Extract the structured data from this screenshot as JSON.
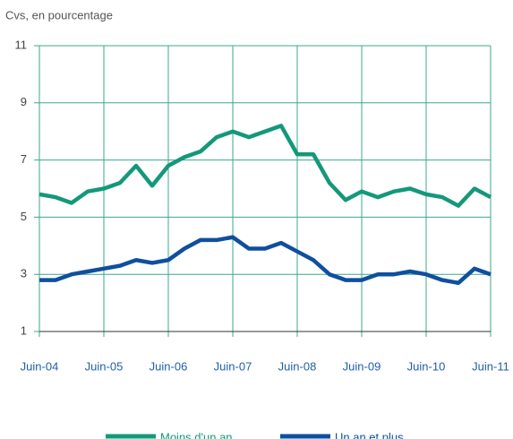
{
  "chart_data": {
    "type": "line",
    "ylabel": "Cvs, en pourcentage",
    "categories": [
      "Juin-04",
      null,
      null,
      null,
      "Juin-05",
      null,
      null,
      null,
      "Juin-06",
      null,
      null,
      null,
      "Juin-07",
      null,
      null,
      null,
      "Juin-08",
      null,
      null,
      null,
      "Juin-09",
      null,
      null,
      null,
      "Juin-10",
      null,
      null,
      null,
      "Juin-11"
    ],
    "series": [
      {
        "name": "Moins d'un an",
        "color": "#14987a",
        "values": [
          5.8,
          5.7,
          5.5,
          5.9,
          6.0,
          6.2,
          6.8,
          6.1,
          6.8,
          7.1,
          7.3,
          7.8,
          8.0,
          7.8,
          8.0,
          8.2,
          7.2,
          7.2,
          6.2,
          5.6,
          5.9,
          5.7,
          5.9,
          6.0,
          5.8,
          5.7,
          5.4,
          6.0,
          5.7
        ]
      },
      {
        "name": "Un an et plus",
        "color": "#0f4f9e",
        "values": [
          2.8,
          2.8,
          3.0,
          3.1,
          3.2,
          3.3,
          3.5,
          3.4,
          3.5,
          3.9,
          4.2,
          4.2,
          4.3,
          3.9,
          3.9,
          4.1,
          3.8,
          3.5,
          3.0,
          2.8,
          2.8,
          3.0,
          3.0,
          3.1,
          3.0,
          2.8,
          2.7,
          3.2,
          3.0
        ]
      }
    ],
    "ylim": [
      1,
      11
    ],
    "yticks": [
      1,
      3,
      5,
      7,
      9,
      11
    ],
    "grid": true
  }
}
